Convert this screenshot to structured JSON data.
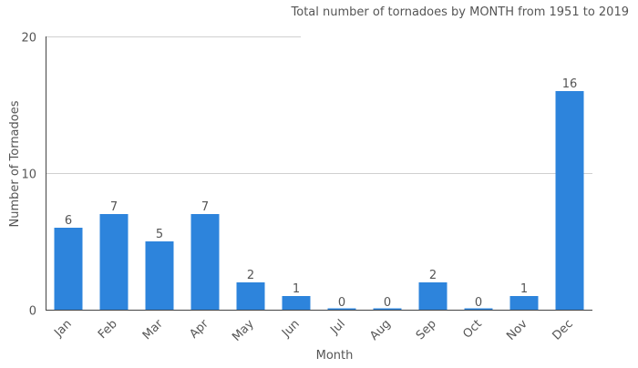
{
  "chart_data": {
    "type": "bar",
    "title": "Total number of tornadoes by MONTH from 1951 to 2019",
    "xlabel": "Month",
    "ylabel": "Number of Tornadoes",
    "categories": [
      "Jan",
      "Feb",
      "Mar",
      "Apr",
      "May",
      "Jun",
      "Jul",
      "Aug",
      "Sep",
      "Oct",
      "Nov",
      "Dec"
    ],
    "values": [
      6,
      7,
      5,
      7,
      2,
      1,
      0,
      0,
      2,
      0,
      1,
      16
    ],
    "ylim": [
      0,
      20
    ],
    "yticks": [
      0,
      10,
      20
    ],
    "grid": true,
    "bar_color": "#2d84dc"
  }
}
